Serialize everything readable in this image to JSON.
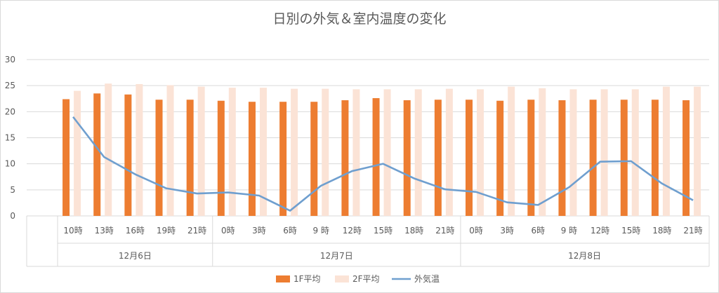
{
  "chart_data": {
    "type": "bar",
    "title": "日別の外気＆室内温度の変化",
    "categories": [
      "10時",
      "13時",
      "16時",
      "19時",
      "21時",
      "0時",
      "3時",
      "6時",
      "9 時",
      "12時",
      "15時",
      "18時",
      "21時",
      "0時",
      "3時",
      "6時",
      "9 時",
      "12時",
      "15時",
      "18時",
      "21時"
    ],
    "groups": [
      {
        "label": "12月6日",
        "count": 5
      },
      {
        "label": "12月7日",
        "count": 8
      },
      {
        "label": "12月8日",
        "count": 8
      }
    ],
    "ylim": [
      0,
      30
    ],
    "yticks": [
      0,
      5,
      10,
      15,
      20,
      25,
      30
    ],
    "grid": true,
    "legend_position": "bottom",
    "series": [
      {
        "name": "1F平均",
        "type": "bar",
        "color": "#ed7d31",
        "values": [
          22.4,
          23.5,
          23.3,
          22.3,
          22.3,
          22.1,
          21.9,
          21.9,
          21.9,
          22.2,
          22.6,
          22.2,
          22.3,
          22.3,
          22.1,
          22.3,
          22.2,
          22.3,
          22.3,
          22.3,
          22.2
        ]
      },
      {
        "name": "2F平均",
        "type": "bar",
        "color": "#fbe3d6",
        "values": [
          24.0,
          25.4,
          25.3,
          25.1,
          24.8,
          24.6,
          24.6,
          24.4,
          24.4,
          24.3,
          24.3,
          24.3,
          24.4,
          24.3,
          24.8,
          24.5,
          24.3,
          24.3,
          24.3,
          24.8,
          24.8
        ]
      },
      {
        "name": "外気温",
        "type": "line",
        "color": "#6f9fcf",
        "values": [
          19.0,
          11.3,
          8.0,
          5.3,
          4.3,
          4.5,
          3.9,
          1.0,
          5.8,
          8.6,
          10.0,
          7.2,
          5.1,
          4.6,
          2.6,
          2.1,
          5.5,
          10.4,
          10.5,
          6.2,
          3.0
        ]
      }
    ]
  }
}
